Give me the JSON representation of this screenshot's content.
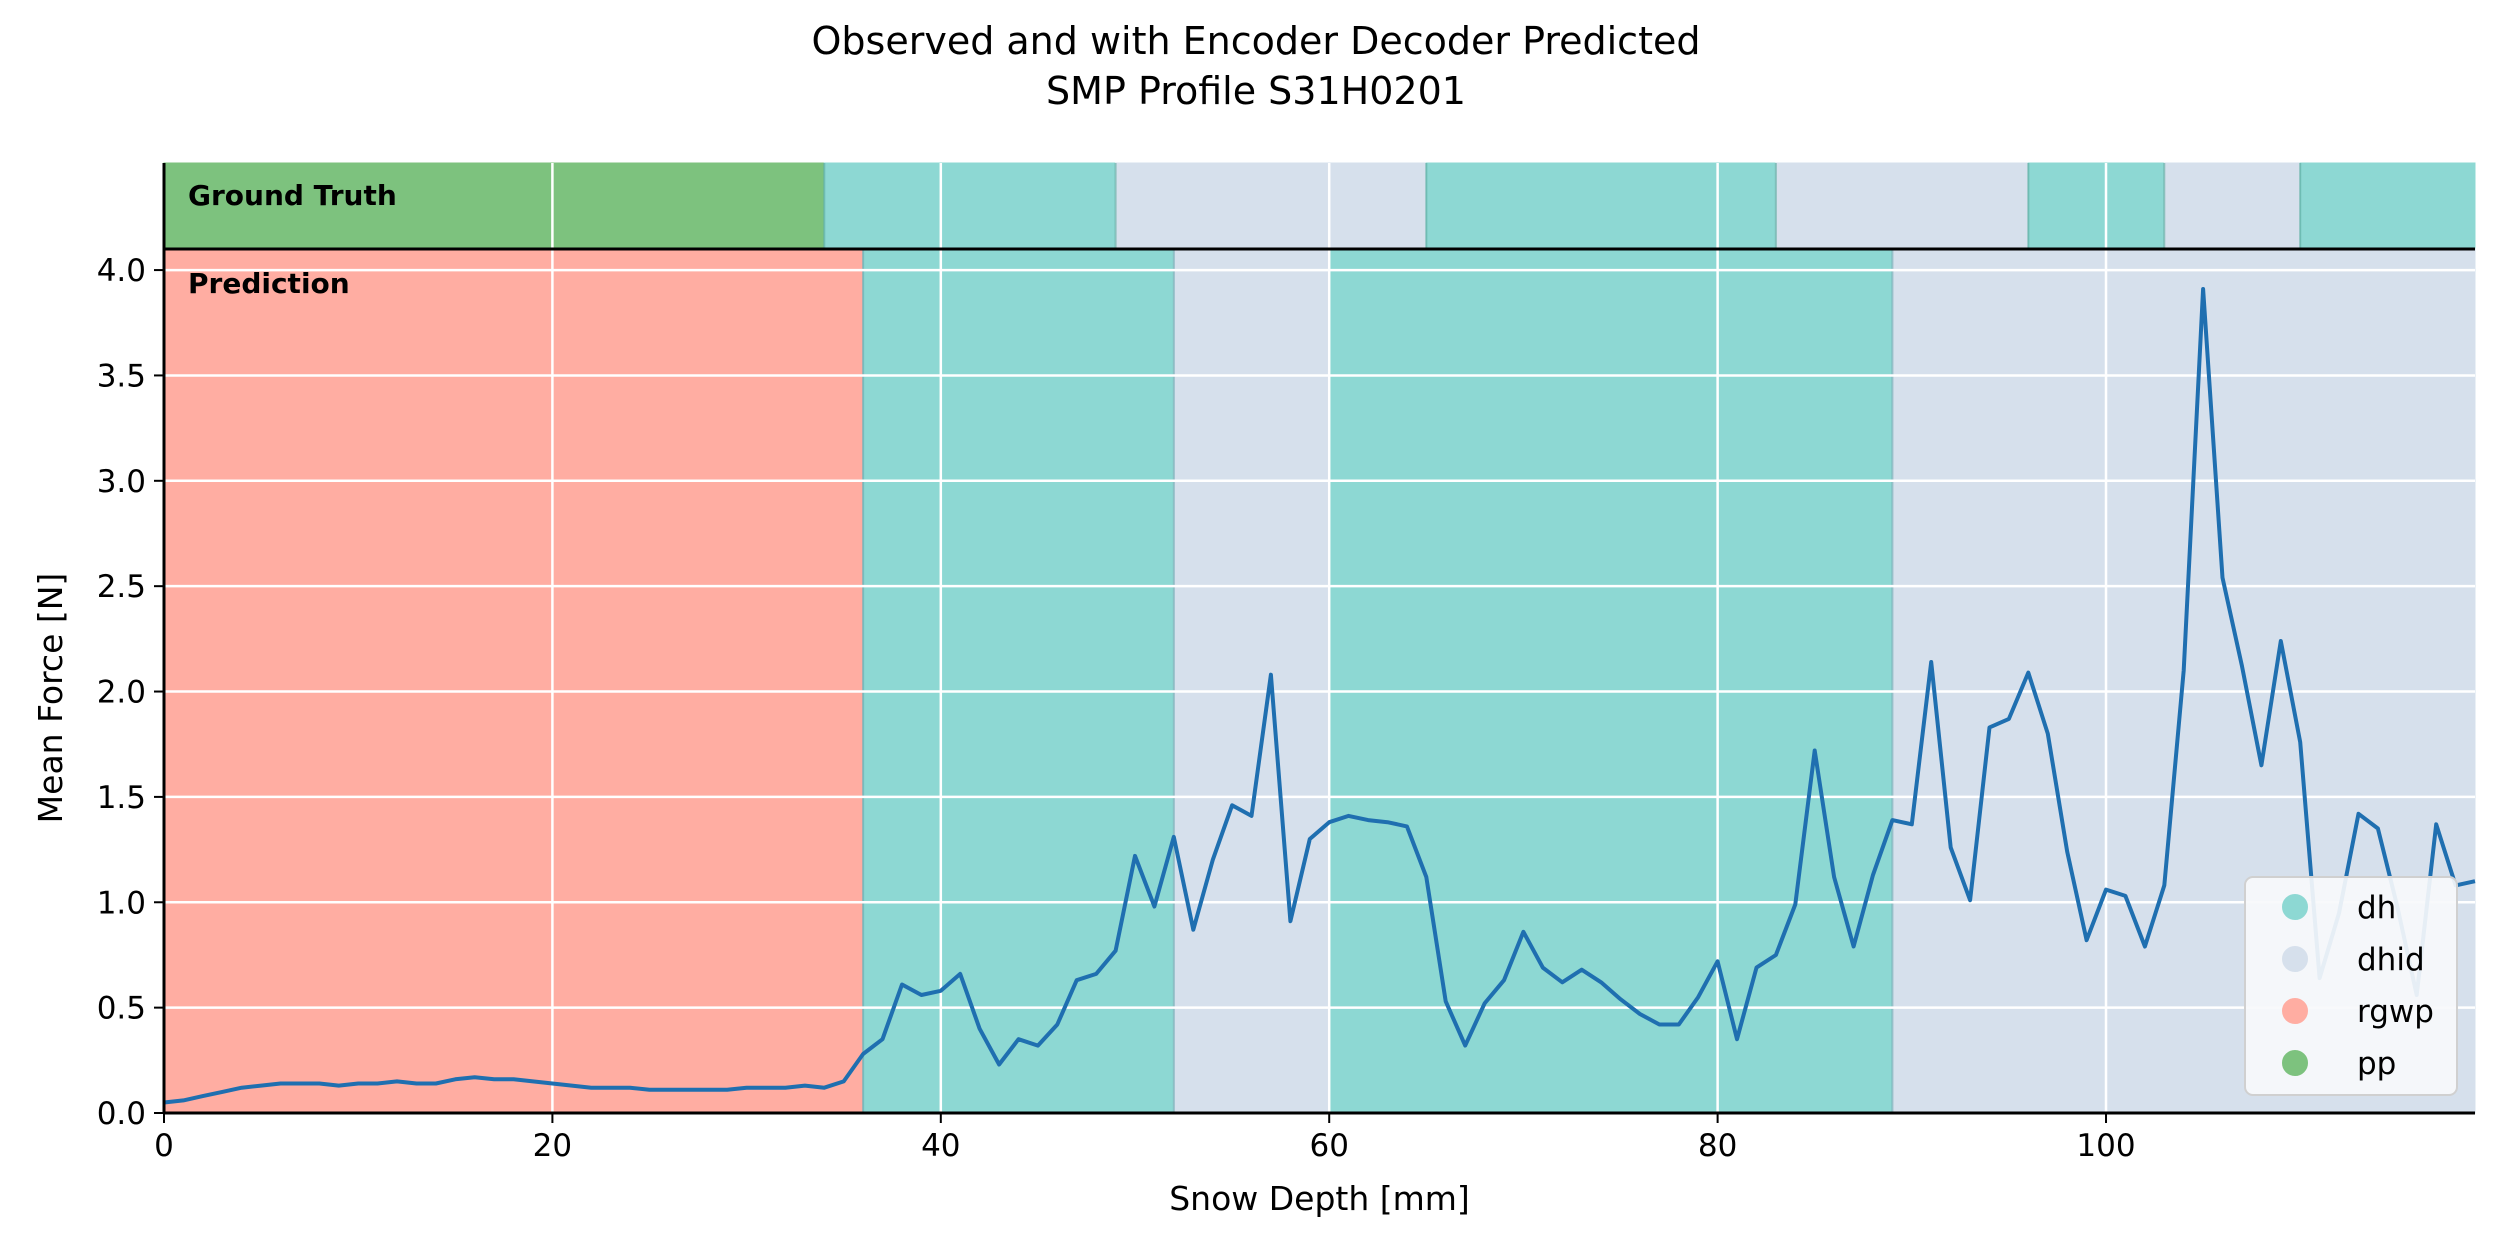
{
  "chart_data": {
    "type": "line",
    "title": [
      "Observed and with Encoder Decoder Predicted",
      "SMP Profile S31H0201"
    ],
    "xlabel": "Snow Depth [mm]",
    "ylabel": "Mean Force [N]",
    "xlim": [
      0,
      119
    ],
    "ylim": [
      0,
      4.1
    ],
    "xticks": [
      0,
      20,
      40,
      60,
      80,
      100
    ],
    "yticks": [
      0.0,
      0.5,
      1.0,
      1.5,
      2.0,
      2.5,
      3.0,
      3.5,
      4.0
    ],
    "grid": true,
    "legend_position": "lower-right",
    "classes": [
      {
        "name": "dh",
        "color": "#8dd8d3"
      },
      {
        "name": "dhid",
        "color": "#d6e0ec"
      },
      {
        "name": "rgwp",
        "color": "#ffada2"
      },
      {
        "name": "pp",
        "color": "#7dc27e"
      }
    ],
    "ground_truth_label": "Ground Truth",
    "prediction_label": "Prediction",
    "ground_truth": [
      {
        "start": 0,
        "end": 34,
        "class": "pp"
      },
      {
        "start": 34,
        "end": 49,
        "class": "dh"
      },
      {
        "start": 49,
        "end": 65,
        "class": "dhid"
      },
      {
        "start": 65,
        "end": 83,
        "class": "dh"
      },
      {
        "start": 83,
        "end": 96,
        "class": "dhid"
      },
      {
        "start": 96,
        "end": 103,
        "class": "dh"
      },
      {
        "start": 103,
        "end": 110,
        "class": "dhid"
      },
      {
        "start": 110,
        "end": 119,
        "class": "dh"
      }
    ],
    "prediction": [
      {
        "start": 0,
        "end": 36,
        "class": "rgwp"
      },
      {
        "start": 36,
        "end": 52,
        "class": "dh"
      },
      {
        "start": 52,
        "end": 60,
        "class": "dhid"
      },
      {
        "start": 60,
        "end": 89,
        "class": "dh"
      },
      {
        "start": 89,
        "end": 119,
        "class": "dhid"
      }
    ],
    "series": [
      {
        "color": "#1f6fb0",
        "x": [
          0,
          1,
          2,
          3,
          4,
          5,
          6,
          7,
          8,
          9,
          10,
          11,
          12,
          13,
          14,
          15,
          16,
          17,
          18,
          19,
          20,
          21,
          22,
          23,
          24,
          25,
          26,
          27,
          28,
          29,
          30,
          31,
          32,
          33,
          34,
          35,
          36,
          37,
          38,
          39,
          40,
          41,
          42,
          43,
          44,
          45,
          46,
          47,
          48,
          49,
          50,
          51,
          52,
          53,
          54,
          55,
          56,
          57,
          58,
          59,
          60,
          61,
          62,
          63,
          64,
          65,
          66,
          67,
          68,
          69,
          70,
          71,
          72,
          73,
          74,
          75,
          76,
          77,
          78,
          79,
          80,
          81,
          82,
          83,
          84,
          85,
          86,
          87,
          88,
          89,
          90,
          91,
          92,
          93,
          94,
          95,
          96,
          97,
          98,
          99,
          100,
          101,
          102,
          103,
          104,
          105,
          106,
          107,
          108,
          109,
          110,
          111,
          112,
          113,
          114,
          115,
          116,
          117,
          118,
          119
        ],
        "y": [
          0.05,
          0.06,
          0.08,
          0.1,
          0.12,
          0.13,
          0.14,
          0.14,
          0.14,
          0.13,
          0.14,
          0.14,
          0.15,
          0.14,
          0.14,
          0.16,
          0.17,
          0.16,
          0.16,
          0.15,
          0.14,
          0.13,
          0.12,
          0.12,
          0.12,
          0.11,
          0.11,
          0.11,
          0.11,
          0.11,
          0.12,
          0.12,
          0.12,
          0.13,
          0.12,
          0.15,
          0.28,
          0.35,
          0.61,
          0.56,
          0.58,
          0.66,
          0.4,
          0.23,
          0.35,
          0.32,
          0.42,
          0.63,
          0.66,
          0.77,
          1.22,
          0.98,
          1.31,
          0.87,
          1.2,
          1.46,
          1.41,
          2.08,
          0.91,
          1.3,
          1.38,
          1.41,
          1.39,
          1.38,
          1.36,
          1.12,
          0.53,
          0.32,
          0.52,
          0.63,
          0.86,
          0.69,
          0.62,
          0.68,
          0.62,
          0.54,
          0.47,
          0.42,
          0.42,
          0.55,
          0.72,
          0.35,
          0.69,
          0.75,
          0.99,
          1.72,
          1.12,
          0.79,
          1.13,
          1.39,
          1.37,
          2.14,
          1.26,
          1.01,
          1.83,
          1.87,
          2.09,
          1.8,
          1.24,
          0.82,
          1.06,
          1.03,
          0.79,
          1.08,
          2.1,
          3.91,
          2.54,
          2.12,
          1.65,
          2.24,
          1.76,
          0.64,
          0.95,
          1.42,
          1.35,
          0.98,
          0.56,
          1.37,
          1.08,
          1.1
        ]
      }
    ]
  }
}
